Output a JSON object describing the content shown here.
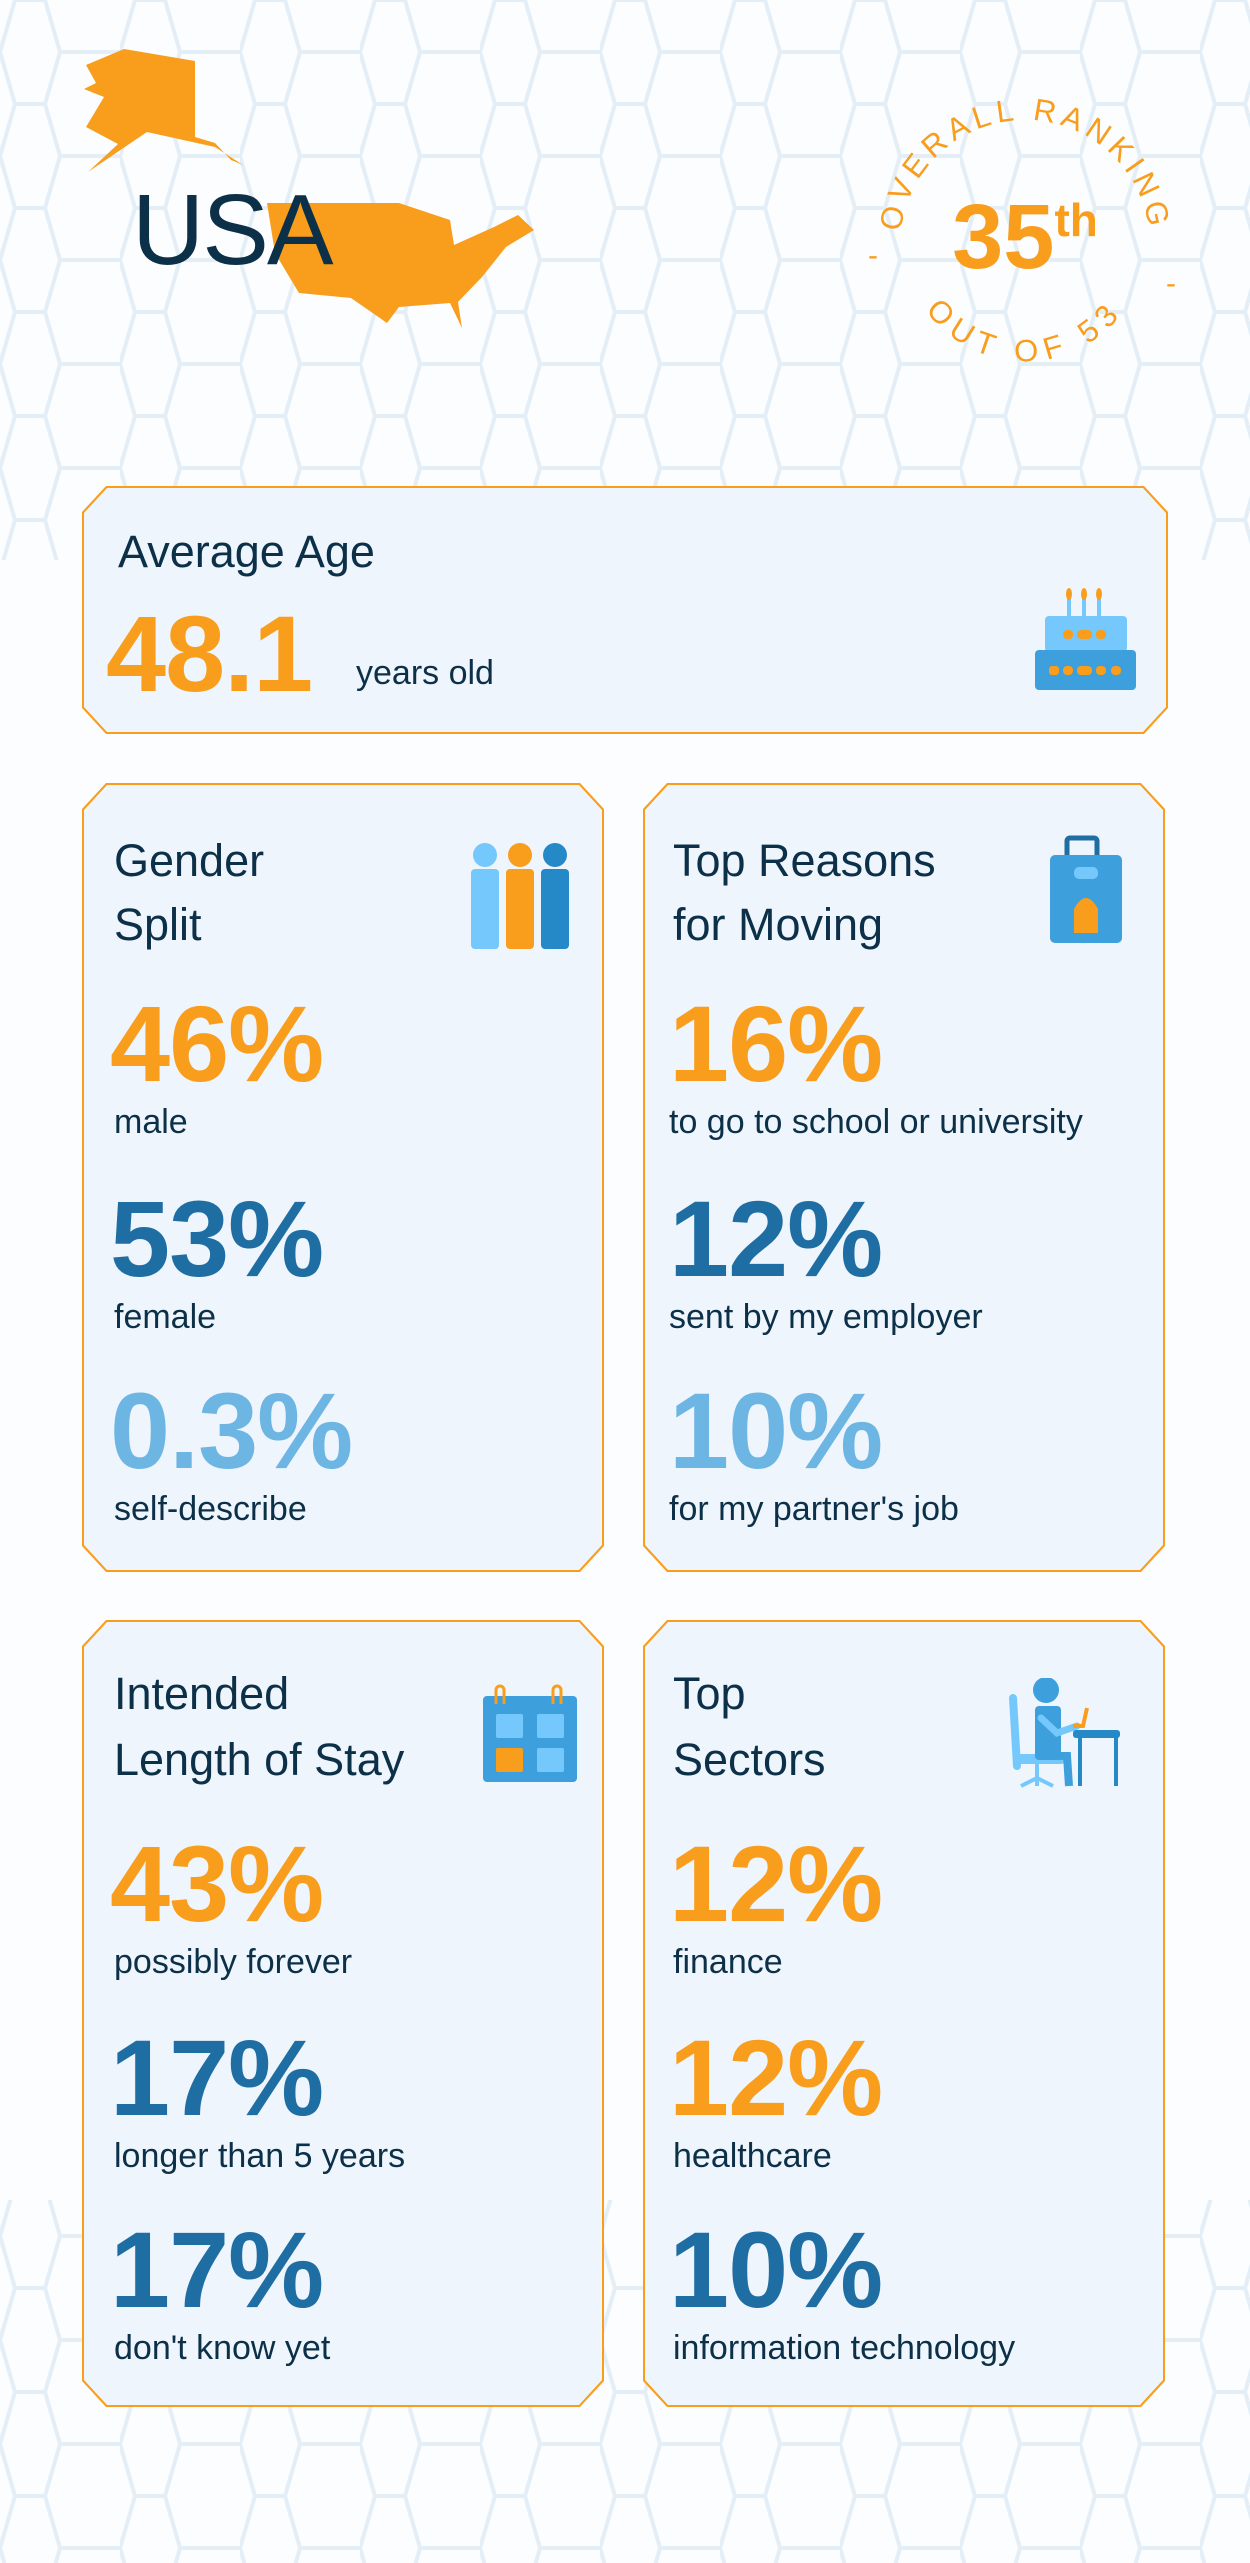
{
  "header": {
    "country": "USA",
    "ranking": {
      "top_text": "OVERALL RANKING",
      "rank": "35",
      "suffix": "th",
      "bottom_text": "OUT OF 53",
      "separator": "-"
    }
  },
  "colors": {
    "orange": "#f99d1c",
    "navy": "#0d3049",
    "blue": "#1f6ea3",
    "light_blue": "#6db6e3",
    "card_bg": "#eef5fc"
  },
  "average_age": {
    "title": "Average Age",
    "value": "48.1",
    "unit": "years old",
    "icon": "birthday-cake-icon"
  },
  "gender_split": {
    "title_line1": "Gender",
    "title_line2": "Split",
    "icon": "people-icon",
    "items": [
      {
        "value": "46%",
        "label": "male"
      },
      {
        "value": "53%",
        "label": "female"
      },
      {
        "value": "0.3%",
        "label": "self-describe"
      }
    ]
  },
  "reasons": {
    "title_line1": "Top Reasons",
    "title_line2": "for Moving",
    "icon": "suitcase-icon",
    "items": [
      {
        "value": "16%",
        "label": "to go to school or university"
      },
      {
        "value": "12%",
        "label": "sent by my employer"
      },
      {
        "value": "10%",
        "label": "for my partner's job"
      }
    ]
  },
  "stay": {
    "title_line1": "Intended",
    "title_line2": "Length of Stay",
    "icon": "calendar-icon",
    "items": [
      {
        "value": "43%",
        "label": "possibly forever"
      },
      {
        "value": "17%",
        "label": "longer than 5 years"
      },
      {
        "value": "17%",
        "label": "don't know yet"
      }
    ]
  },
  "sectors": {
    "title_line1": "Top",
    "title_line2": "Sectors",
    "icon": "office-worker-icon",
    "items": [
      {
        "value": "12%",
        "label": "finance"
      },
      {
        "value": "12%",
        "label": "healthcare"
      },
      {
        "value": "10%",
        "label": "information technology"
      }
    ]
  }
}
